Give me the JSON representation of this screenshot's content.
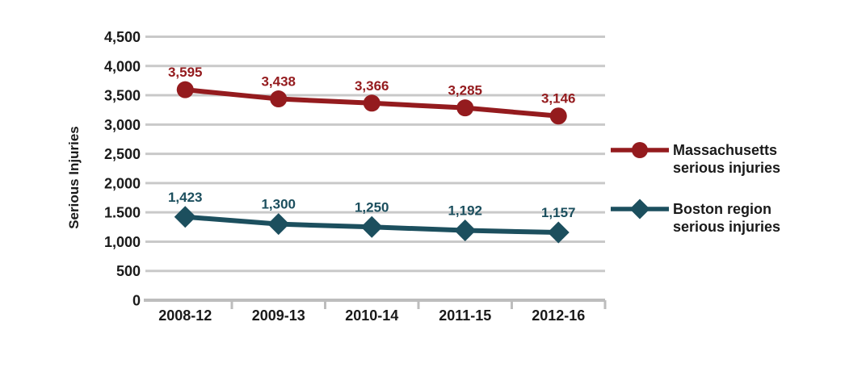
{
  "chart_data": {
    "type": "line",
    "title": "",
    "xlabel": "",
    "ylabel": "Serious Injuries",
    "categories": [
      "2008-12",
      "2009-13",
      "2010-14",
      "2011-15",
      "2012-16"
    ],
    "series": [
      {
        "name": "Massachusetts serious injuries",
        "legend_lines": [
          "Massachusetts",
          "serious injuries"
        ],
        "marker": "circle",
        "color": "#941B1E",
        "values": [
          3595,
          3438,
          3366,
          3285,
          3146
        ],
        "labels": [
          "3,595",
          "3,438",
          "3,366",
          "3,285",
          "3,146"
        ]
      },
      {
        "name": "Boston region serious injuries",
        "legend_lines": [
          "Boston region",
          "serious injuries"
        ],
        "marker": "diamond",
        "color": "#1C4F5E",
        "values": [
          1423,
          1300,
          1250,
          1192,
          1157
        ],
        "labels": [
          "1,423",
          "1,300",
          "1,250",
          "1,192",
          "1,157"
        ]
      }
    ],
    "y_axis": {
      "min": 0,
      "max": 4500,
      "tick_step": 500,
      "tick_labels": [
        "0",
        "500",
        "1,000",
        "1.500",
        "2,000",
        "2,500",
        "3,000",
        "3,500",
        "4,000",
        "4,500"
      ]
    },
    "legend_position": "right",
    "grid": "horizontal",
    "colors": {
      "gridline": "#C9C9C9",
      "axis": "#BDBDBD",
      "text": "#1A1A1A",
      "background": "#FFFFFF"
    }
  }
}
